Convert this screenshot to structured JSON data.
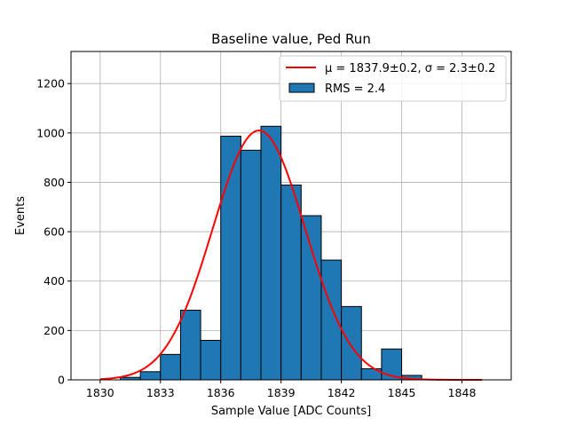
{
  "chart_data": {
    "type": "bar",
    "title": "Baseline value, Ped Run",
    "xlabel": "Sample Value [ADC Counts]",
    "ylabel": "Events",
    "xlim": [
      1828.55,
      1850.45
    ],
    "ylim": [
      0,
      1330
    ],
    "xticks": [
      1830,
      1833,
      1836,
      1839,
      1842,
      1845,
      1848
    ],
    "yticks": [
      0,
      200,
      400,
      600,
      800,
      1000,
      1200
    ],
    "grid": true,
    "legend_position": "top-right",
    "bins": {
      "edges": [
        1830,
        1831,
        1832,
        1833,
        1834,
        1835,
        1836,
        1837,
        1838,
        1839,
        1840,
        1841,
        1842,
        1843,
        1844,
        1845,
        1846,
        1847,
        1848,
        1849
      ],
      "counts": [
        0,
        10,
        33,
        103,
        282,
        160,
        987,
        930,
        1027,
        789,
        665,
        485,
        297,
        45,
        125,
        18,
        2,
        0,
        0
      ]
    },
    "histogram_series": {
      "name": "RMS = 2.4",
      "color": "#1f77b4",
      "edgecolor": "#000000"
    },
    "fit_series": {
      "name": "μ = 1837.9±0.2, σ = 2.3±0.2",
      "color": "#ff0000",
      "mu": 1837.9,
      "sigma": 2.3,
      "amplitude": 1010,
      "x_range": [
        1830,
        1849
      ]
    }
  }
}
